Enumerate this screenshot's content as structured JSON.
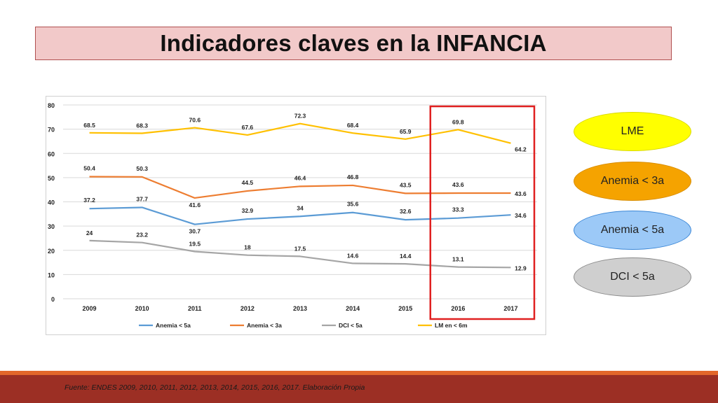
{
  "title": "Indicadores claves en la INFANCIA",
  "legend_pills": [
    {
      "label": "LME",
      "color": "#ffff00",
      "border": "#d9d900"
    },
    {
      "label": "Anemia < 3a",
      "color": "#f5a300",
      "border": "#d88d00"
    },
    {
      "label": "Anemia < 5a",
      "color": "#9cc9f7",
      "border": "#3a86d6"
    },
    {
      "label": "DCI < 5a",
      "color": "#cfcfcf",
      "border": "#8a8a8a"
    }
  ],
  "footer": "Fuente: ENDES 2009, 2010, 2011, 2012, 2013, 2014, 2015, 2016, 2017. Elaboración Propia",
  "chart_data": {
    "type": "line",
    "x": [
      "2009",
      "2010",
      "2011",
      "2012",
      "2013",
      "2014",
      "2015",
      "2016",
      "2017"
    ],
    "ylim": [
      0,
      80
    ],
    "yticks": [
      0,
      10,
      20,
      30,
      40,
      50,
      60,
      70,
      80
    ],
    "grid": true,
    "legend_position": "bottom",
    "highlight_box": [
      "2016",
      "2017"
    ],
    "series": [
      {
        "name": "Anemia < 5a",
        "color": "#5b9bd5",
        "values": [
          37.2,
          37.7,
          30.7,
          32.9,
          34,
          35.6,
          32.6,
          33.3,
          34.6
        ]
      },
      {
        "name": "Anemia < 3a",
        "color": "#ed7d31",
        "values": [
          50.4,
          50.3,
          41.6,
          44.5,
          46.4,
          46.8,
          43.5,
          43.6,
          43.6
        ]
      },
      {
        "name": "DCI < 5a",
        "color": "#a5a5a5",
        "values": [
          24,
          23.2,
          19.5,
          18,
          17.5,
          14.6,
          14.4,
          13.1,
          12.9
        ]
      },
      {
        "name": "LM en < 6m",
        "color": "#ffc000",
        "values": [
          68.5,
          68.3,
          70.6,
          67.6,
          72.3,
          68.4,
          65.9,
          69.8,
          64.2
        ]
      }
    ]
  }
}
